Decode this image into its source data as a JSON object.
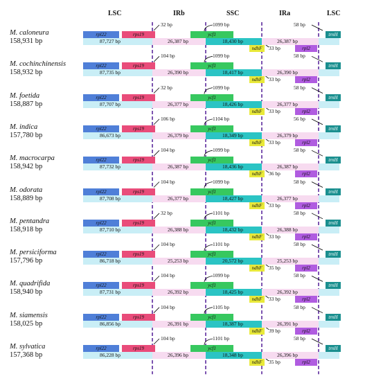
{
  "headers": {
    "lsc_left": "LSC",
    "irb": "IRb",
    "ssc": "SSC",
    "ira": "IRa",
    "lsc_right": "LSC"
  },
  "genes": {
    "rpl22": "rpl22",
    "rps19": "rps19",
    "ycf1": "ycf1",
    "ndhF": "ndhF",
    "rpl2": "rpl2",
    "trnH": "trnH"
  },
  "colors": {
    "rpl22": "#4f7fd8",
    "rps19": "#e94c7a",
    "ycf1": "#37c85f",
    "ndhF": "#e9e93a",
    "rpl2": "#b05ce0",
    "trnH": "#1a8f8f",
    "lsc_band": "#c9eef6",
    "ir_band": "#f7dbf0",
    "ssc_band": "#2bc4c4",
    "boundary_line": "#5b2a9c"
  },
  "species": [
    {
      "name": "M. caloneura",
      "size": "158,931 bp",
      "lsc": "87,727 bp",
      "irb": "26,387 bp",
      "ssc": "18,430 bp",
      "ira": "26,387 bp",
      "irb_ext": "32 bp",
      "ycf1_ext": "1099 bp",
      "ndhf_gap": "33 bp",
      "trnh_gap": "58 bp"
    },
    {
      "name": "M. cochinchinensis",
      "size": "158,932 bp",
      "lsc": "87,735 bp",
      "irb": "26,390 bp",
      "ssc": "18,417 bp",
      "ira": "26,390 bp",
      "irb_ext": "104 bp",
      "ycf1_ext": "1099 bp",
      "ndhf_gap": "33 bp",
      "trnh_gap": "58 bp"
    },
    {
      "name": "M. foetida",
      "size": "158,887 bp",
      "lsc": "87,707 bp",
      "irb": "26,377 bp",
      "ssc": "18,426 bp",
      "ira": "26,377 bp",
      "irb_ext": "32 bp",
      "ycf1_ext": "1099 bp",
      "ndhf_gap": "33 bp",
      "trnh_gap": "58 bp"
    },
    {
      "name": "M. indica",
      "size": "157,780 bp",
      "lsc": "86,673 bp",
      "irb": "26,379 bp",
      "ssc": "18,349 bp",
      "ira": "26,379 bp",
      "irb_ext": "106 bp",
      "ycf1_ext": "1104 bp",
      "ndhf_gap": "33 bp",
      "trnh_gap": "56 bp"
    },
    {
      "name": "M. macrocarpa",
      "size": "158,942 bp",
      "lsc": "87,732 bp",
      "irb": "26,387 bp",
      "ssc": "18,436 bp",
      "ira": "26,387 bp",
      "irb_ext": "104 bp",
      "ycf1_ext": "1099 bp",
      "ndhf_gap": "36 bp",
      "trnh_gap": "58 bp"
    },
    {
      "name": "M. odorata",
      "size": "158,889 bp",
      "lsc": "87,708 bp",
      "irb": "26,377 bp",
      "ssc": "18,427 bp",
      "ira": "26,377 bp",
      "irb_ext": "104 bp",
      "ycf1_ext": "1099 bp",
      "ndhf_gap": "33 bp",
      "trnh_gap": "58 bp"
    },
    {
      "name": "M. pentandra",
      "size": "158,918 bp",
      "lsc": "87,710 bp",
      "irb": "26,388 bp",
      "ssc": "18,432 bp",
      "ira": "26,388 bp",
      "irb_ext": "32 bp",
      "ycf1_ext": "1101 bp",
      "ndhf_gap": "33 bp",
      "trnh_gap": "58 bp"
    },
    {
      "name": "M. persiciforma",
      "size": "157,796 bp",
      "lsc": "86,718 bp",
      "irb": "25,253 bp",
      "ssc": "20,572 bp",
      "ira": "25,253 bp",
      "irb_ext": "104 bp",
      "ycf1_ext": "1101 bp",
      "ndhf_gap": "35 bp",
      "trnh_gap": "58 bp"
    },
    {
      "name": "M. quadrifida",
      "size": "158,940 bp",
      "lsc": "87,731 bp",
      "irb": "26,392 bp",
      "ssc": "18,425 bp",
      "ira": "26,392 bp",
      "irb_ext": "104 bp",
      "ycf1_ext": "1099 bp",
      "ndhf_gap": "33 bp",
      "trnh_gap": "58 bp"
    },
    {
      "name": "M. siamensis",
      "size": "158,025 bp",
      "lsc": "86,856 bp",
      "irb": "26,391 bp",
      "ssc": "18,387 bp",
      "ira": "26,391 bp",
      "irb_ext": "104 bp",
      "ycf1_ext": "1105 bp",
      "ndhf_gap": "39 bp",
      "trnh_gap": "58 bp"
    },
    {
      "name": "M. sylvatica",
      "size": "157,368 bp",
      "lsc": "86,228 bp",
      "irb": "26,396 bp",
      "ssc": "18,348 bp",
      "ira": "26,396 bp",
      "irb_ext": "104 bp",
      "ycf1_ext": "1101 bp",
      "ndhf_gap": "35 bp",
      "trnh_gap": "58 bp"
    }
  ]
}
